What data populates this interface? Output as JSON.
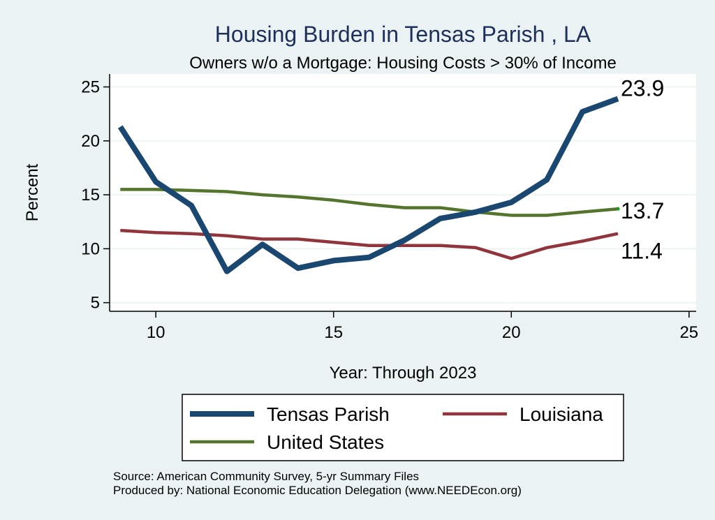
{
  "chart_data": {
    "type": "line",
    "title": "Housing Burden in Tensas Parish , LA",
    "subtitle": "Owners w/o a Mortgage: Housing Costs > 30% of Income",
    "xlabel": "Year: Through 2023",
    "ylabel": "Percent",
    "xlim": [
      8.7,
      25.2
    ],
    "ylim": [
      4.2,
      26.2
    ],
    "x_ticks": [
      10,
      15,
      20,
      25
    ],
    "y_ticks": [
      5,
      10,
      15,
      20,
      25
    ],
    "grid": true,
    "legend_position": "bottom",
    "x": [
      9,
      10,
      11,
      12,
      13,
      14,
      15,
      16,
      17,
      18,
      19,
      20,
      21,
      22,
      23
    ],
    "series": [
      {
        "name": "Tensas Parish",
        "color": "#1a476f",
        "values": [
          21.3,
          16.2,
          14.0,
          7.9,
          10.4,
          8.2,
          8.9,
          9.2,
          10.8,
          12.8,
          13.4,
          14.3,
          16.4,
          22.7,
          23.9
        ],
        "end_label": "23.9"
      },
      {
        "name": "Louisiana",
        "color": "#90353b",
        "values": [
          11.7,
          11.5,
          11.4,
          11.2,
          10.9,
          10.9,
          10.6,
          10.3,
          10.3,
          10.3,
          10.1,
          9.1,
          10.1,
          10.7,
          11.4
        ],
        "end_label": "11.4"
      },
      {
        "name": "United States",
        "color": "#55752f",
        "values": [
          15.5,
          15.5,
          15.4,
          15.3,
          15.0,
          14.8,
          14.5,
          14.1,
          13.8,
          13.8,
          13.4,
          13.1,
          13.1,
          13.4,
          13.7
        ],
        "end_label": "13.7"
      }
    ]
  },
  "notes": {
    "source": "Source: American Community Survey, 5-yr Summary Files",
    "produced_by": "Produced by: National Economic Education Delegation (www.NEEDEcon.org)"
  }
}
